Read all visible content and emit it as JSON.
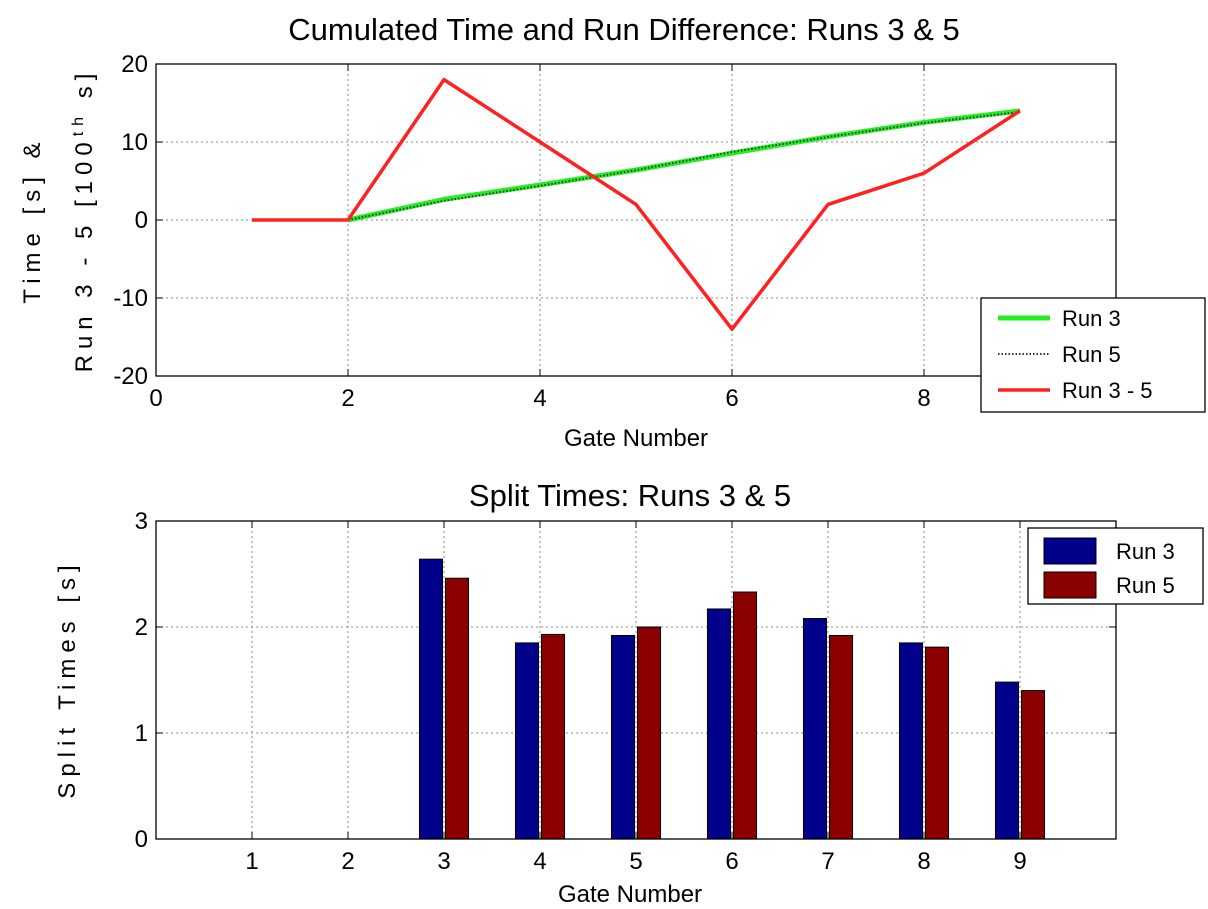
{
  "chart_data": [
    {
      "type": "line",
      "title": "Cumulated Time and Run Difference: Runs 3 & 5",
      "xlabel": "Gate Number",
      "ylabel_line1": "Time [s] &",
      "ylabel_line2_prefix": "Run 3 - 5 [100",
      "ylabel_sup": "th",
      "ylabel_line2_suffix": " s]",
      "xlim": [
        0,
        10
      ],
      "ylim": [
        -20,
        20
      ],
      "xticks": [
        "0",
        "2",
        "4",
        "6",
        "8",
        "10"
      ],
      "yticks": [
        "-20",
        "-10",
        "0",
        "10",
        "20"
      ],
      "grid": true,
      "legend_position": "lower-right",
      "series": [
        {
          "name": "Run 3",
          "color": "#22ee22",
          "style": "solid",
          "x": [
            2,
            3,
            4,
            5,
            6,
            7,
            8,
            9
          ],
          "y": [
            0,
            2.64,
            4.49,
            6.41,
            8.58,
            10.66,
            12.51,
            13.99
          ]
        },
        {
          "name": "Run 5",
          "color": "#333333",
          "style": "dotted",
          "x": [
            2,
            3,
            4,
            5,
            6,
            7,
            8,
            9
          ],
          "y": [
            0,
            2.46,
            4.39,
            6.39,
            8.72,
            10.64,
            12.45,
            13.85
          ]
        },
        {
          "name": "Run 3 - 5",
          "color": "#ff2020",
          "style": "solid",
          "x": [
            1,
            2,
            3,
            4,
            5,
            6,
            7,
            8,
            9
          ],
          "y": [
            0,
            0,
            18,
            10,
            2,
            -14,
            2,
            6,
            14
          ]
        }
      ]
    },
    {
      "type": "bar",
      "title": "Split Times: Runs  3 & 5",
      "xlabel": "Gate Number",
      "ylabel": "Split Times [s]",
      "categories": [
        "1",
        "2",
        "3",
        "4",
        "5",
        "6",
        "7",
        "8",
        "9"
      ],
      "ylim": [
        0,
        3
      ],
      "yticks": [
        "0",
        "1",
        "2",
        "3"
      ],
      "grid": true,
      "legend_position": "top-right",
      "series": [
        {
          "name": "Run 3",
          "color": "#00008b",
          "values": [
            0,
            0,
            2.64,
            1.85,
            1.92,
            2.17,
            2.08,
            1.85,
            1.48
          ]
        },
        {
          "name": "Run 5",
          "color": "#8b0000",
          "values": [
            0,
            0,
            2.46,
            1.93,
            2.0,
            2.33,
            1.92,
            1.81,
            1.4
          ]
        }
      ]
    }
  ]
}
